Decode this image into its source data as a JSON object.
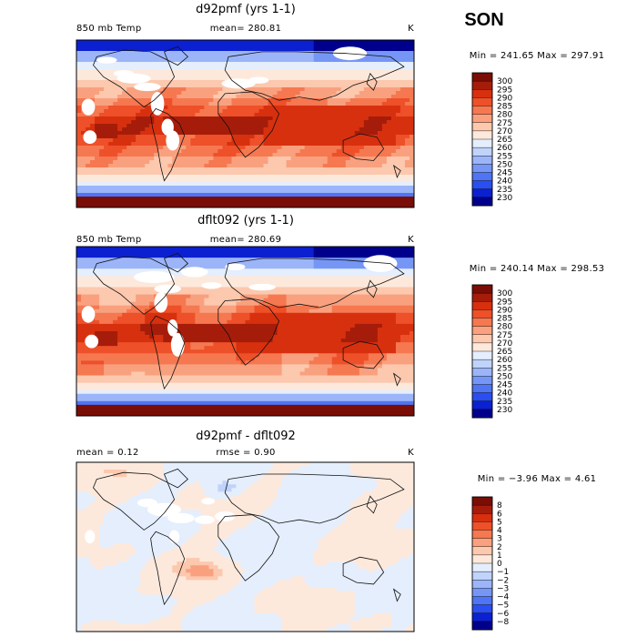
{
  "season": "SON",
  "chart_data": [
    {
      "type": "heatmap",
      "title": "d92pmf (yrs 1-1)",
      "left_label": "850 mb Temp",
      "center_label": "mean= 280.81",
      "units": "K",
      "range_text": "Min = 241.65 Max = 297.91",
      "min": 241.65,
      "max": 297.91,
      "mean": 280.81,
      "levels": [
        230,
        235,
        240,
        245,
        250,
        255,
        260,
        265,
        270,
        275,
        280,
        285,
        290,
        295,
        300
      ],
      "level_labels": [
        "230",
        "235",
        "240",
        "245",
        "250",
        "255",
        "260",
        "265",
        "270",
        "275",
        "280",
        "285",
        "290",
        "295",
        "300"
      ],
      "colors": [
        "#00008c",
        "#0b20d0",
        "#2a4ef0",
        "#4f74f4",
        "#7696f6",
        "#9bb5f8",
        "#c0d3fb",
        "#e4eefd",
        "#fde9dc",
        "#fcc8ae",
        "#f9a17f",
        "#f57851",
        "#ee5029",
        "#d7300f",
        "#a51d0a",
        "#7a0d05"
      ]
    },
    {
      "type": "heatmap",
      "title": "dflt092 (yrs 1-1)",
      "left_label": "850 mb Temp",
      "center_label": "mean= 280.69",
      "units": "K",
      "range_text": "Min = 240.14 Max = 298.53",
      "min": 240.14,
      "max": 298.53,
      "mean": 280.69,
      "levels": [
        230,
        235,
        240,
        245,
        250,
        255,
        260,
        265,
        270,
        275,
        280,
        285,
        290,
        295,
        300
      ],
      "level_labels": [
        "230",
        "235",
        "240",
        "245",
        "250",
        "255",
        "260",
        "265",
        "270",
        "275",
        "280",
        "285",
        "290",
        "295",
        "300"
      ],
      "colors": [
        "#00008c",
        "#0b20d0",
        "#2a4ef0",
        "#4f74f4",
        "#7696f6",
        "#9bb5f8",
        "#c0d3fb",
        "#e4eefd",
        "#fde9dc",
        "#fcc8ae",
        "#f9a17f",
        "#f57851",
        "#ee5029",
        "#d7300f",
        "#a51d0a",
        "#7a0d05"
      ]
    },
    {
      "type": "heatmap",
      "title": "d92pmf - dflt092",
      "left_label": "mean =   0.12",
      "center_label": "rmse =   0.90",
      "units": "K",
      "range_text": "Min = −3.96 Max =   4.61",
      "min": -3.96,
      "max": 4.61,
      "mean": 0.12,
      "rmse": 0.9,
      "levels": [
        -8,
        -6,
        -5,
        -4,
        -3,
        -2,
        -1,
        0,
        1,
        2,
        3,
        4,
        5,
        6,
        8
      ],
      "level_labels": [
        "−8",
        "−6",
        "−5",
        "−4",
        "−3",
        "−2",
        "−1",
        "0",
        "1",
        "2",
        "3",
        "4",
        "5",
        "6",
        "8"
      ],
      "colors": [
        "#00008c",
        "#0b20d0",
        "#2a4ef0",
        "#4f74f4",
        "#7696f6",
        "#9bb5f8",
        "#c0d3fb",
        "#e4eefd",
        "#fde9dc",
        "#fcc8ae",
        "#f9a17f",
        "#f57851",
        "#ee5029",
        "#d7300f",
        "#a51d0a",
        "#7a0d05"
      ]
    }
  ]
}
